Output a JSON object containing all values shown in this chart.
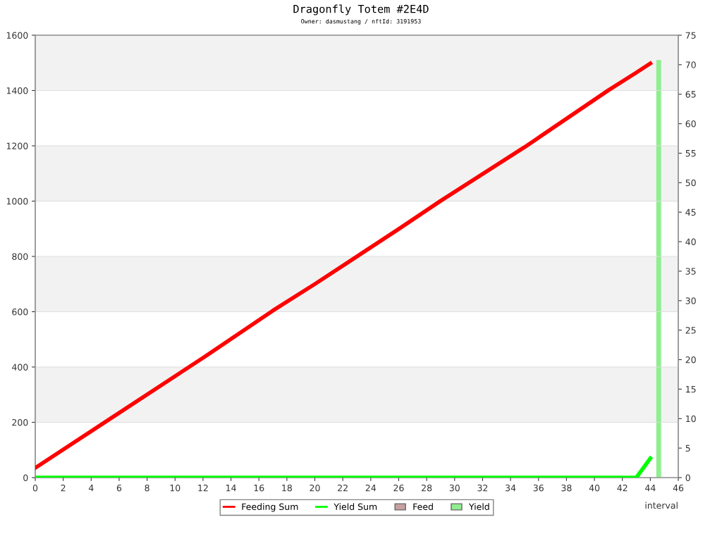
{
  "chart_data": {
    "type": "line",
    "title": "Dragonfly Totem #2E4D",
    "subtitle": "Owner: dasmustang / nftId: 3191953",
    "xlabel": "interval",
    "xlim": [
      0,
      46
    ],
    "xticks": [
      0,
      2,
      4,
      6,
      8,
      10,
      12,
      14,
      16,
      18,
      20,
      22,
      24,
      26,
      28,
      30,
      32,
      34,
      36,
      38,
      40,
      42,
      44,
      46
    ],
    "ylim": [
      0,
      1600
    ],
    "yticks": [
      0,
      200,
      400,
      600,
      800,
      1000,
      1200,
      1400,
      1600
    ],
    "y2lim": [
      0,
      75
    ],
    "y2ticks": [
      0,
      5,
      10,
      15,
      20,
      25,
      30,
      35,
      40,
      45,
      50,
      55,
      60,
      65,
      70,
      75
    ],
    "grid": "y",
    "legend": "bottom",
    "bands": [
      {
        "axis": "y",
        "from": 200,
        "to": 400,
        "color": "#f2f2f2"
      },
      {
        "axis": "y",
        "from": 600,
        "to": 800,
        "color": "#f2f2f2"
      },
      {
        "axis": "y",
        "from": 1000,
        "to": 1200,
        "color": "#f2f2f2"
      },
      {
        "axis": "y",
        "from": 1400,
        "to": 1600,
        "color": "#f2f2f2"
      }
    ],
    "series": [
      {
        "name": "Feeding Sum",
        "color": "#ff0000",
        "x": [
          0,
          5,
          12,
          17,
          20,
          26,
          29,
          35,
          41,
          43,
          44
        ],
        "values": [
          35,
          201,
          433,
          604,
          700,
          899,
          1001,
          1195,
          1401,
          1465,
          1498
        ]
      },
      {
        "name": "Yield Sum",
        "color": "#00ff00",
        "x": [
          0,
          43,
          44
        ],
        "values": [
          0,
          0,
          70
        ]
      },
      {
        "name": "Feed",
        "type": "bar",
        "color": "#c8a0a0"
      },
      {
        "name": "Yield",
        "type": "bar",
        "axis": "y2",
        "color": "#90ee90",
        "x": [
          44.6
        ],
        "values": [
          70.8
        ]
      }
    ]
  }
}
